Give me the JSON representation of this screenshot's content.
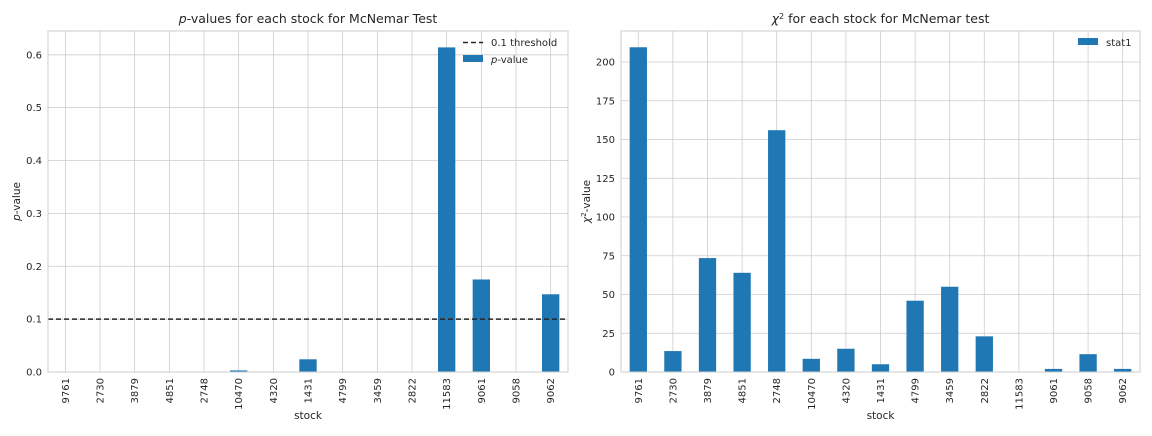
{
  "chart_data": [
    {
      "type": "bar",
      "title_italic": "p",
      "title_rest": "-values for each stock for McNemar Test",
      "xlabel": "stock",
      "ylabel_italic": "p",
      "ylabel_rest": "-value",
      "categories": [
        "9761",
        "2730",
        "3879",
        "4851",
        "2748",
        "10470",
        "4320",
        "1431",
        "4799",
        "3459",
        "2822",
        "11583",
        "9061",
        "9058",
        "9062"
      ],
      "series": [
        {
          "name": "p-value",
          "name_italic": "p",
          "name_rest": "-value",
          "color": "#1f77b4",
          "values": [
            0.0,
            0.0,
            0.0,
            0.0,
            0.0,
            0.003,
            0.0,
            0.024,
            0.0,
            0.0,
            0.0,
            0.614,
            0.175,
            0.0,
            0.147
          ]
        }
      ],
      "threshold": {
        "value": 0.1,
        "label": "0.1 threshold",
        "color": "#262626"
      },
      "ylim": [
        0,
        0.645
      ],
      "yticks": [
        0.0,
        0.1,
        0.2,
        0.3,
        0.4,
        0.5,
        0.6
      ],
      "ytick_labels": [
        "0.0",
        "0.1",
        "0.2",
        "0.3",
        "0.4",
        "0.5",
        "0.6"
      ],
      "grid": true,
      "legend": "top-right"
    },
    {
      "type": "bar",
      "title_pre": "χ",
      "title_sup": "2",
      "title_rest": " for each stock for McNemar test",
      "xlabel": "stock",
      "ylabel_pre": "χ",
      "ylabel_sup": "2",
      "ylabel_rest": "-value",
      "categories": [
        "9761",
        "2730",
        "3879",
        "4851",
        "2748",
        "10470",
        "4320",
        "1431",
        "4799",
        "3459",
        "2822",
        "11583",
        "9061",
        "9058",
        "9062"
      ],
      "series": [
        {
          "name": "stat1",
          "color": "#1f77b4",
          "values": [
            209.5,
            13.5,
            73.5,
            64.0,
            156.0,
            8.5,
            15.0,
            5.0,
            46.0,
            55.0,
            23.0,
            0.0,
            2.0,
            11.5,
            2.0
          ]
        }
      ],
      "ylim": [
        0,
        220
      ],
      "yticks": [
        0,
        25,
        50,
        75,
        100,
        125,
        150,
        175,
        200
      ],
      "ytick_labels": [
        "0",
        "25",
        "50",
        "75",
        "100",
        "125",
        "150",
        "175",
        "200"
      ],
      "grid": true,
      "legend": "top-right"
    }
  ]
}
